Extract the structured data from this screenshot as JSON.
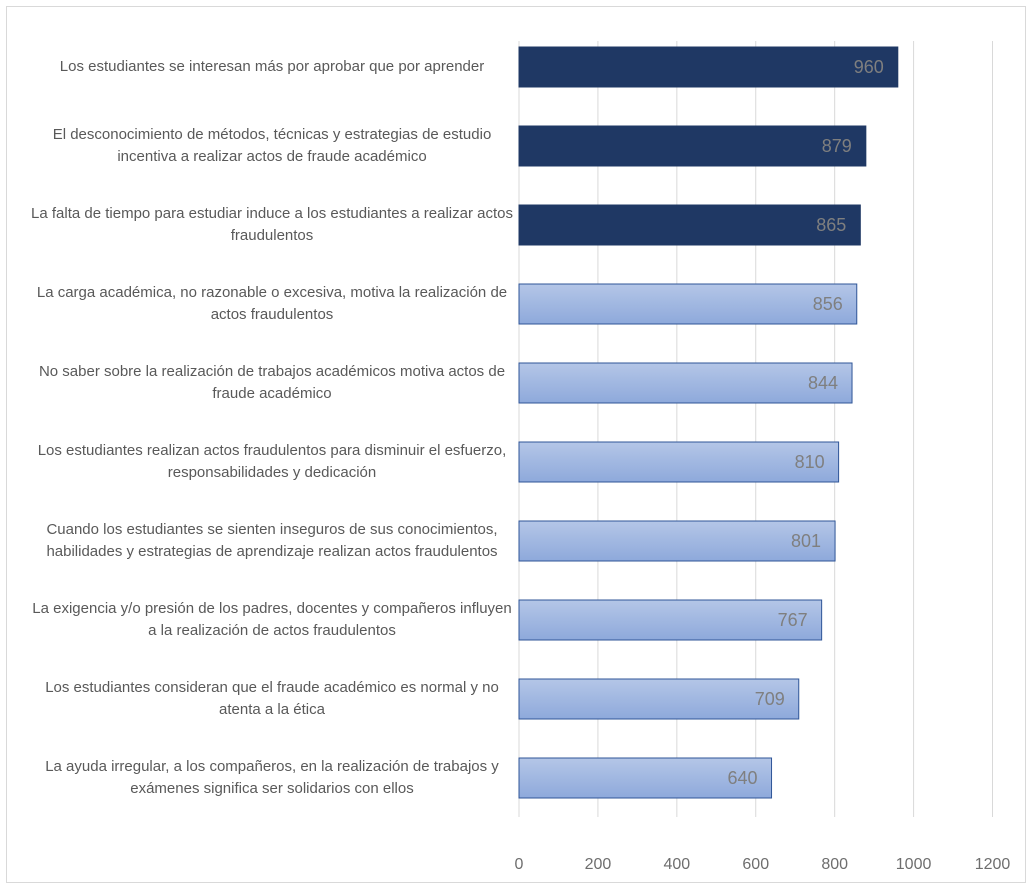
{
  "chart_data": {
    "type": "bar",
    "orientation": "horizontal",
    "title": "",
    "xlabel": "",
    "ylabel": "",
    "xlim": [
      0,
      1200
    ],
    "xticks": [
      0,
      200,
      400,
      600,
      800,
      1000,
      1200
    ],
    "grid": true,
    "legend": "none",
    "categories": [
      "Los estudiantes se interesan más por aprobar que por aprender",
      "El desconocimiento de métodos, técnicas y estrategias de estudio incentiva a realizar actos de fraude académico",
      "La falta de tiempo para estudiar induce a los estudiantes a realizar actos fraudulentos",
      "La carga académica, no razonable o excesiva, motiva la realización de actos fraudulentos",
      "No saber sobre la realización de trabajos académicos motiva actos de fraude académico",
      "Los estudiantes realizan actos fraudulentos para disminuir el esfuerzo, responsabilidades y dedicación",
      "Cuando los estudiantes se sienten inseguros de sus conocimientos, habilidades y estrategias de aprendizaje realizan actos fraudulentos",
      "La exigencia y/o presión de los padres, docentes y compañeros influyen a la realización de actos fraudulentos",
      "Los estudiantes consideran que el fraude académico es normal y no atenta a la ética",
      "La ayuda irregular, a los compañeros, en la realización de trabajos y exámenes significa ser solidarios con ellos"
    ],
    "values": [
      960,
      879,
      865,
      856,
      844,
      810,
      801,
      767,
      709,
      640
    ],
    "highlight_count": 3,
    "colors": {
      "highlight": "#1f3864",
      "normal_top": "#b4c6e7",
      "normal_bottom": "#8ea9db",
      "normal_border": "#2f5597",
      "grid": "#d9d9d9"
    }
  }
}
